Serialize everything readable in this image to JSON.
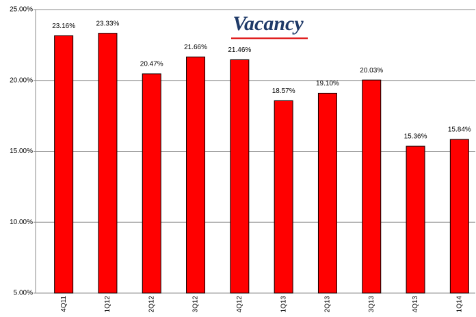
{
  "chart_data": {
    "type": "bar",
    "title": "Vacancy",
    "categories": [
      "4Q11",
      "1Q12",
      "2Q12",
      "3Q12",
      "4Q12",
      "1Q13",
      "2Q13",
      "3Q13",
      "4Q13",
      "1Q14"
    ],
    "values": [
      23.16,
      23.33,
      20.47,
      21.66,
      21.46,
      18.57,
      19.1,
      20.03,
      15.36,
      15.84
    ],
    "value_labels": [
      "23.16%",
      "23.33%",
      "20.47%",
      "21.66%",
      "21.46%",
      "18.57%",
      "19.10%",
      "20.03%",
      "15.36%",
      "15.84%"
    ],
    "color": "#ff0000",
    "ylim": [
      5,
      25
    ],
    "yticks": [
      {
        "value": 5,
        "label": "5.00%"
      },
      {
        "value": 10,
        "label": "10.00%"
      },
      {
        "value": 15,
        "label": "15.00%"
      },
      {
        "value": 20,
        "label": "20.00%"
      },
      {
        "value": 25,
        "label": "25.00%"
      }
    ],
    "grid": true
  }
}
